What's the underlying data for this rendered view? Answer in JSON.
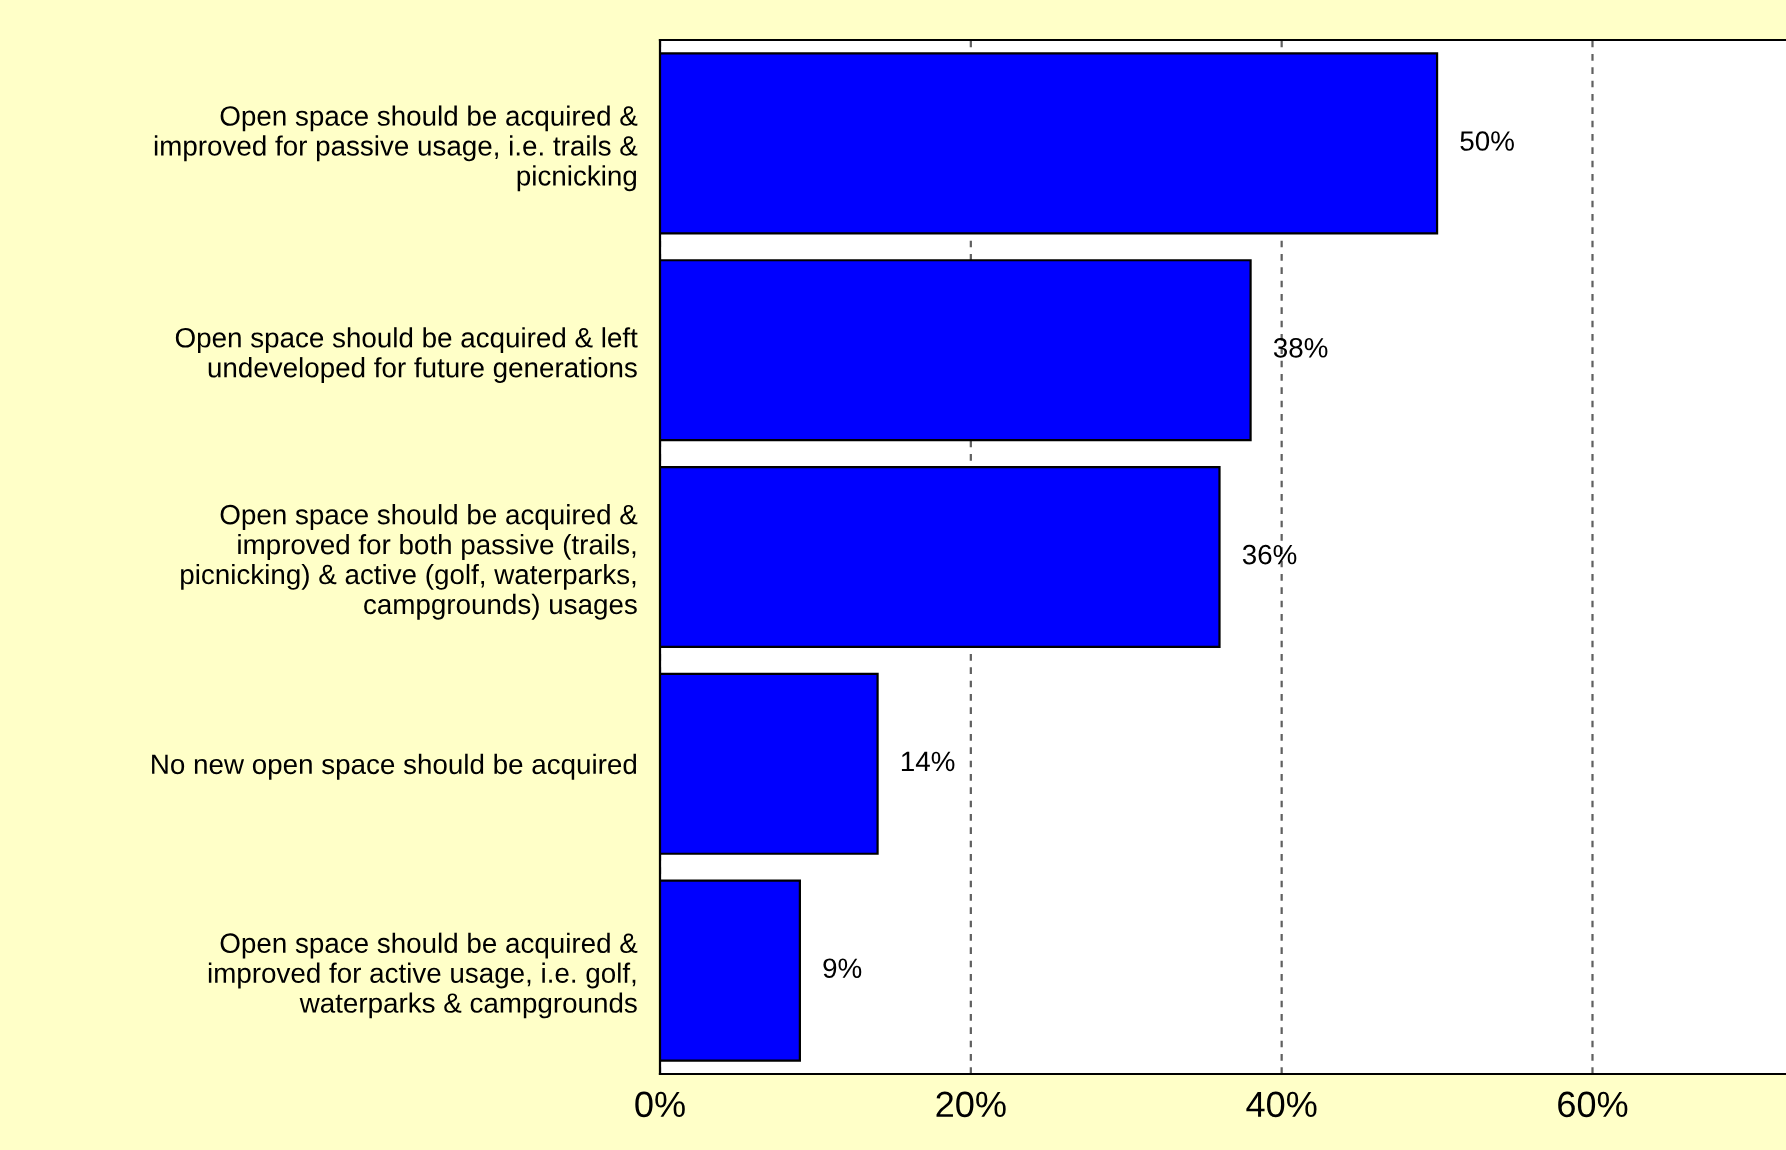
{
  "chart_data": {
    "type": "bar",
    "orientation": "horizontal",
    "categories": [
      "Open space should be acquired &\nimproved for passive usage, i.e. trails &\npicnicking",
      "Open space should be acquired & left\nundeveloped for future generations",
      "Open space should be acquired &\nimproved for both passive (trails,\npicnicking) & active (golf, waterparks,\ncampgrounds) usages",
      "No new open space should be acquired",
      "Open space should be acquired &\nimproved for active usage, i.e. golf,\nwaterparks & campgrounds"
    ],
    "values": [
      50,
      38,
      36,
      14,
      9
    ],
    "value_labels": [
      "50%",
      "38%",
      "36%",
      "14%",
      "9%"
    ],
    "color": "#0000ff",
    "xlim": [
      0,
      73.6
    ],
    "xticks": [
      {
        "value": 0,
        "label": "0%"
      },
      {
        "value": 20,
        "label": "20%"
      },
      {
        "value": 40,
        "label": "40%"
      },
      {
        "value": 60,
        "label": "60%"
      }
    ],
    "grid": "x"
  }
}
